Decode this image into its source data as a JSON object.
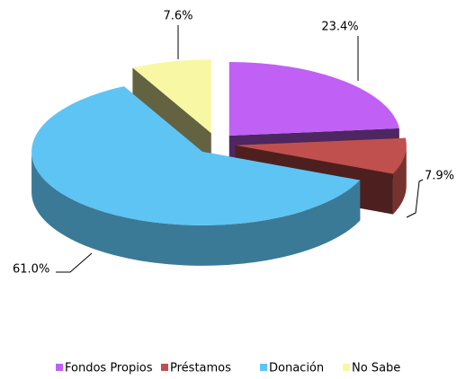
{
  "chart_data": {
    "type": "pie",
    "categories": [
      "Fondos Propios",
      "Préstamos",
      "Donación",
      "No Sabe"
    ],
    "values": [
      23.4,
      7.9,
      61.0,
      7.6
    ],
    "value_labels": [
      "23.4%",
      "7.9%",
      "61.0%",
      "7.6%"
    ],
    "colors": [
      "#c060f4",
      "#c0504d",
      "#5ec4f4",
      "#f8f8a4"
    ],
    "legend": "bottom"
  }
}
